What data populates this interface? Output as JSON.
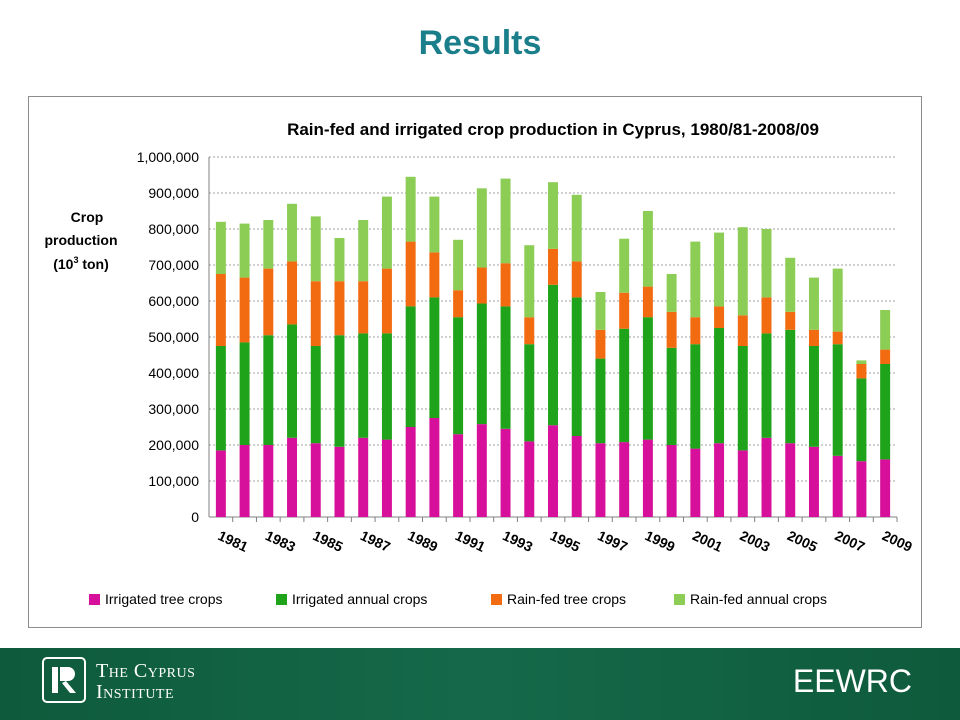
{
  "slide": {
    "title": "Results"
  },
  "chart_data": {
    "type": "bar",
    "stacked": true,
    "title": "Rain-fed and irrigated crop production in Cyprus, 1980/81-2008/09",
    "ylabel_lines": [
      "Crop",
      "production",
      "(10",
      "3",
      " ton)"
    ],
    "xlabel": "",
    "ylim": [
      0,
      1000000
    ],
    "yticks": [
      0,
      100000,
      200000,
      300000,
      400000,
      500000,
      600000,
      700000,
      800000,
      900000,
      1000000
    ],
    "ytick_labels": [
      "0",
      "100,000",
      "200,000",
      "300,000",
      "400,000",
      "500,000",
      "600,000",
      "700,000",
      "800,000",
      "900,000",
      "1,000,000"
    ],
    "grid": true,
    "legend_position": "bottom",
    "categories": [
      "1981",
      "1982",
      "1983",
      "1984",
      "1985",
      "1986",
      "1987",
      "1988",
      "1989",
      "1990",
      "1991",
      "1992",
      "1993",
      "1994",
      "1995",
      "1996",
      "1997",
      "1998",
      "1999",
      "2000",
      "2001",
      "2002",
      "2003",
      "2004",
      "2005",
      "2006",
      "2007",
      "2008",
      "2009"
    ],
    "xtick_labels": [
      "1981",
      "",
      "1983",
      "",
      "1985",
      "",
      "1987",
      "",
      "1989",
      "",
      "1991",
      "",
      "1993",
      "",
      "1995",
      "",
      "1997",
      "",
      "1999",
      "",
      "2001",
      "",
      "2003",
      "",
      "2005",
      "",
      "2007",
      "",
      "2009"
    ],
    "series": [
      {
        "name": "Irrigated tree crops",
        "color": "#d6109a",
        "values": [
          185000,
          200000,
          200000,
          220000,
          205000,
          195000,
          220000,
          215000,
          250000,
          275000,
          230000,
          258000,
          245000,
          210000,
          255000,
          225000,
          205000,
          208000,
          215000,
          200000,
          190000,
          205000,
          185000,
          220000,
          205000,
          195000,
          170000,
          155000,
          160000
        ]
      },
      {
        "name": "Irrigated annual crops",
        "color": "#1ea31a",
        "values": [
          290000,
          285000,
          305000,
          315000,
          270000,
          310000,
          290000,
          295000,
          335000,
          335000,
          325000,
          335000,
          340000,
          270000,
          390000,
          385000,
          235000,
          315000,
          340000,
          270000,
          290000,
          320000,
          290000,
          290000,
          315000,
          280000,
          310000,
          230000,
          265000
        ]
      },
      {
        "name": "Rain-fed tree crops",
        "color": "#f26b10",
        "values": [
          200000,
          180000,
          185000,
          175000,
          180000,
          150000,
          145000,
          180000,
          180000,
          125000,
          75000,
          100000,
          120000,
          75000,
          100000,
          100000,
          80000,
          100000,
          85000,
          100000,
          75000,
          60000,
          85000,
          100000,
          50000,
          45000,
          35000,
          40000,
          40000
        ]
      },
      {
        "name": "Rain-fed annual crops",
        "color": "#8ccd55",
        "values": [
          145000,
          150000,
          135000,
          160000,
          180000,
          120000,
          170000,
          200000,
          180000,
          155000,
          140000,
          220000,
          235000,
          200000,
          185000,
          185000,
          105000,
          150000,
          210000,
          105000,
          210000,
          205000,
          245000,
          190000,
          150000,
          145000,
          175000,
          10000,
          110000
        ]
      }
    ]
  },
  "footer": {
    "institute_line1": "The Cyprus",
    "institute_line2": "Institute",
    "unit": "EEWRC"
  }
}
